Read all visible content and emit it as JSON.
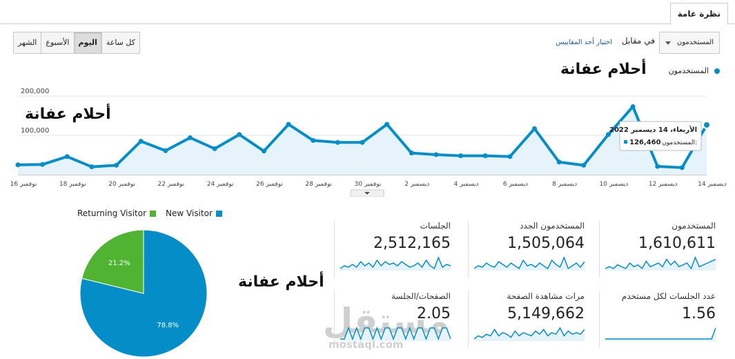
{
  "tabs": [
    {
      "label": "نظرة عامة"
    }
  ],
  "toolbar": {
    "metric_select": "المستخدمون",
    "versus": "في مقابل",
    "pick_metric": "اختيار أحد المقاييس",
    "periods": [
      "الشهر",
      "الأسبوع",
      "اليوم",
      "كل ساعة"
    ],
    "active_period": "اليوم"
  },
  "watermarks": [
    "أحلام عفانة",
    "أحلام عفانة",
    "أحلام عفانة"
  ],
  "colors": {
    "series": "#058dc7",
    "new_visitor": "#058dc7",
    "returning_visitor": "#50b432"
  },
  "chart_data": [
    {
      "type": "line",
      "legend": "المستخدمون",
      "y_ticks": [
        "200,000",
        "100,000"
      ],
      "ylim": [
        0,
        230000
      ],
      "x_labels": [
        "نوفمبر 16",
        "نوفمبر 18",
        "نوفمبر 20",
        "نوفمبر 22",
        "نوفمبر 24",
        "نوفمبر 26",
        "نوفمبر 28",
        "نوفمبر 30",
        "ديسمبر 2",
        "ديسمبر 4",
        "ديسمبر 6",
        "ديسمبر 8",
        "ديسمبر 10",
        "ديسمبر 12",
        "ديسمبر 14"
      ],
      "values": [
        25000,
        26000,
        46000,
        20000,
        24000,
        85000,
        61000,
        94000,
        66000,
        102000,
        60000,
        128000,
        87000,
        82000,
        82000,
        128000,
        55000,
        51000,
        48000,
        48000,
        46000,
        117000,
        32000,
        24000,
        102000,
        173000,
        21000,
        18000,
        126460
      ],
      "tooltip": {
        "date": "الأربعاء، 14 ديسمبر 2022",
        "label": "المستخدمون:",
        "value": "126,460"
      }
    },
    {
      "type": "pie",
      "legend": [
        {
          "name": "Returning Visitor"
        },
        {
          "name": "New Visitor"
        }
      ],
      "slices": [
        {
          "name": "New Visitor",
          "value": 78.8,
          "label": "78.8%"
        },
        {
          "name": "Returning Visitor",
          "value": 21.2,
          "label": "21.2%"
        }
      ]
    }
  ],
  "metrics": [
    {
      "title": "المستخدمون",
      "value": "1,610,611",
      "spark": [
        7,
        8,
        7,
        9,
        8,
        7,
        10,
        8,
        9,
        7,
        11,
        8,
        9,
        10,
        8,
        12,
        9,
        11,
        8,
        9,
        10,
        7,
        13,
        8,
        9,
        10,
        11,
        12
      ]
    },
    {
      "title": "المستخدمون الجدد",
      "value": "1,505,064",
      "spark": [
        6,
        8,
        7,
        10,
        8,
        7,
        11,
        9,
        7,
        10,
        8,
        6,
        12,
        8,
        9,
        7,
        10,
        8,
        6,
        12,
        9,
        7,
        14,
        6,
        8,
        10,
        7,
        11
      ]
    },
    {
      "title": "الجلسات",
      "value": "2,512,165",
      "spark": [
        7,
        9,
        8,
        10,
        8,
        12,
        9,
        11,
        8,
        13,
        9,
        12,
        10,
        11,
        9,
        12,
        10,
        8,
        9,
        11,
        8,
        13,
        9,
        7,
        15,
        8,
        10,
        9
      ]
    },
    {
      "title": "عدد الجلسات لكل مستخدم",
      "value": "1.56",
      "spark": [
        9,
        9,
        9,
        9,
        9,
        9,
        9,
        9,
        9,
        9,
        9,
        9,
        9,
        9,
        9,
        9,
        9,
        9,
        9,
        9,
        9,
        9,
        9,
        9,
        9,
        9,
        9,
        10
      ]
    },
    {
      "title": "مرات مشاهدة الصفحة",
      "value": "5,149,662",
      "spark": [
        6,
        8,
        7,
        9,
        8,
        12,
        8,
        10,
        9,
        7,
        11,
        8,
        10,
        9,
        8,
        11,
        9,
        12,
        8,
        10,
        9,
        13,
        8,
        11,
        9,
        10,
        9,
        12
      ]
    },
    {
      "title": "الصفحات/الجلسة",
      "value": "2.05",
      "spark": [
        8,
        8,
        9,
        8,
        9,
        8,
        9,
        9,
        8,
        9,
        8,
        9,
        9,
        8,
        9,
        9,
        8,
        9,
        8,
        9,
        9,
        8,
        9,
        9,
        8,
        9,
        9,
        8
      ]
    }
  ],
  "brand": {
    "name": "مستقل",
    "site": "mostaql.com"
  }
}
